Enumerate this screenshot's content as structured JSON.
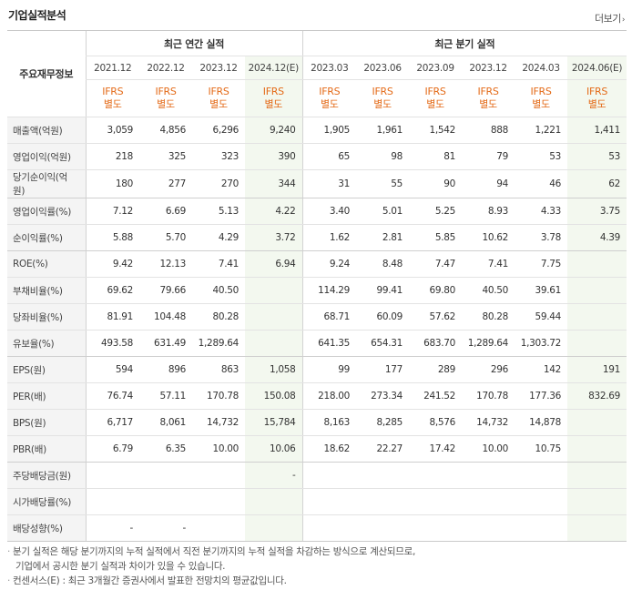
{
  "title": "기업실적분석",
  "more": "더보기",
  "annual_label": "최근 연간 실적",
  "quarter_label": "최근 분기 실적",
  "corner_label": "주요재무정보",
  "periods": [
    "2021.12",
    "2022.12",
    "2023.12",
    "2024.12(E)",
    "2023.03",
    "2023.06",
    "2023.09",
    "2023.12",
    "2024.03",
    "2024.06(E)"
  ],
  "ifrs": "IFRS",
  "ifrs_sub": "별도",
  "rows": [
    {
      "label": "매출액(억원)",
      "values": [
        "3,059",
        "4,856",
        "6,296",
        "9,240",
        "1,905",
        "1,961",
        "1,542",
        "888",
        "1,221",
        "1,411"
      ]
    },
    {
      "label": "영업이익(억원)",
      "values": [
        "218",
        "325",
        "323",
        "390",
        "65",
        "98",
        "81",
        "79",
        "53",
        "53"
      ]
    },
    {
      "label": "당기순이익(억원)",
      "values": [
        "180",
        "277",
        "270",
        "344",
        "31",
        "55",
        "90",
        "94",
        "46",
        "62"
      ]
    },
    {
      "label": "영업이익률(%)",
      "values": [
        "7.12",
        "6.69",
        "5.13",
        "4.22",
        "3.40",
        "5.01",
        "5.25",
        "8.93",
        "4.33",
        "3.75"
      ]
    },
    {
      "label": "순이익률(%)",
      "values": [
        "5.88",
        "5.70",
        "4.29",
        "3.72",
        "1.62",
        "2.81",
        "5.85",
        "10.62",
        "3.78",
        "4.39"
      ]
    },
    {
      "label": "ROE(%)",
      "values": [
        "9.42",
        "12.13",
        "7.41",
        "6.94",
        "9.24",
        "8.48",
        "7.47",
        "7.41",
        "7.75",
        ""
      ]
    },
    {
      "label": "부채비율(%)",
      "values": [
        "69.62",
        "79.66",
        "40.50",
        "",
        "114.29",
        "99.41",
        "69.80",
        "40.50",
        "39.61",
        ""
      ]
    },
    {
      "label": "당좌비율(%)",
      "values": [
        "81.91",
        "104.48",
        "80.28",
        "",
        "68.71",
        "60.09",
        "57.62",
        "80.28",
        "59.44",
        ""
      ]
    },
    {
      "label": "유보율(%)",
      "values": [
        "493.58",
        "631.49",
        "1,289.64",
        "",
        "641.35",
        "654.31",
        "683.70",
        "1,289.64",
        "1,303.72",
        ""
      ]
    },
    {
      "label": "EPS(원)",
      "values": [
        "594",
        "896",
        "863",
        "1,058",
        "99",
        "177",
        "289",
        "296",
        "142",
        "191"
      ]
    },
    {
      "label": "PER(배)",
      "values": [
        "76.74",
        "57.11",
        "170.78",
        "150.08",
        "218.00",
        "273.34",
        "241.52",
        "170.78",
        "177.36",
        "832.69"
      ]
    },
    {
      "label": "BPS(원)",
      "values": [
        "6,717",
        "8,061",
        "14,732",
        "15,784",
        "8,163",
        "8,285",
        "8,576",
        "14,732",
        "14,878",
        ""
      ]
    },
    {
      "label": "PBR(배)",
      "values": [
        "6.79",
        "6.35",
        "10.00",
        "10.06",
        "18.62",
        "22.27",
        "17.42",
        "10.00",
        "10.75",
        ""
      ]
    },
    {
      "label": "주당배당금(원)",
      "values": [
        "",
        "",
        "",
        "-",
        "",
        "",
        "",
        "",
        "",
        ""
      ]
    },
    {
      "label": "시가배당률(%)",
      "values": [
        "",
        "",
        "",
        "",
        "",
        "",
        "",
        "",
        "",
        ""
      ]
    },
    {
      "label": "배당성향(%)",
      "values": [
        "-",
        "-",
        "",
        "",
        "",
        "",
        "",
        "",
        "",
        ""
      ]
    }
  ],
  "notes": [
    "분기 실적은 해당 분기까지의 누적 실적에서 직전 분기까지의 누적 실적을 차감하는 방식으로 계산되므로,",
    "기업에서 공시한 분기 실적과 차이가 있을 수 있습니다.",
    "컨센서스(E) : 최근 3개월간 증권사에서 발표한 전망치의 평균값입니다."
  ],
  "colors": {
    "ifrs": "#e46b19",
    "estimate_bg": "#f3f8ef",
    "label_bg": "#f4f4f4"
  }
}
